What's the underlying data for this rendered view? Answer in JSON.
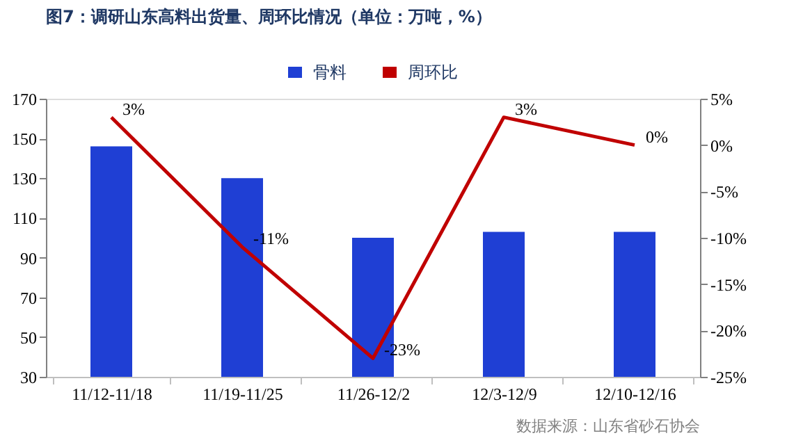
{
  "chart_data": {
    "type": "bar",
    "title": "图7：调研山东高料出货量、周环比情况（单位：万吨，%）",
    "categories": [
      "11/12-11/18",
      "11/19-11/25",
      "11/26-12/2",
      "12/3-12/9",
      "12/10-12/16"
    ],
    "series": [
      {
        "name": "骨料",
        "color": "#1f3fd4",
        "values": [
          146,
          130,
          100,
          103,
          103
        ]
      },
      {
        "name": "周环比",
        "type": "line",
        "axis": "y2",
        "color": "#c00000",
        "values": [
          3,
          -11,
          -23,
          3,
          0
        ],
        "value_labels": [
          "3%",
          "-11%",
          "-23%",
          "3%",
          "0%"
        ]
      }
    ],
    "ylim": [
      30,
      170
    ],
    "yticks": [
      30,
      50,
      70,
      90,
      110,
      130,
      150,
      170
    ],
    "y2lim": [
      -25,
      5
    ],
    "y2ticks": [
      {
        "value": -25,
        "label": "-25%"
      },
      {
        "value": -20,
        "label": "-20%"
      },
      {
        "value": -15,
        "label": "-15%"
      },
      {
        "value": -10,
        "label": "-10%"
      },
      {
        "value": -5,
        "label": "-5%"
      },
      {
        "value": 0,
        "label": "0%"
      },
      {
        "value": 5,
        "label": "5%"
      }
    ],
    "grid": false,
    "legend": "top",
    "annotations": [
      "数据来源：山东省砂石协会"
    ]
  }
}
